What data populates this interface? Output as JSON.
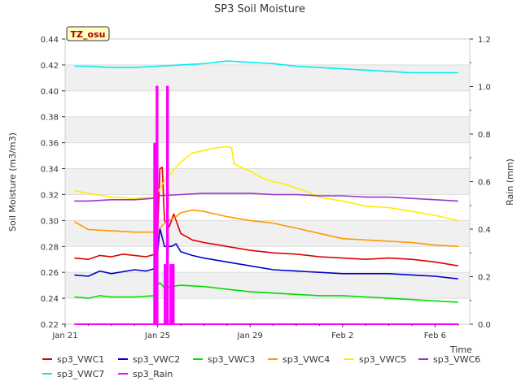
{
  "chart_data": {
    "type": "line",
    "title": "SP3 Soil Moisture",
    "xlabel": "Time",
    "ylabel": "Soil Moisture (m3/m3)",
    "y2label": "Rain (mm)",
    "station_badge": "TZ_osu",
    "x_tick_labels": [
      "Jan 21",
      "Jan 25",
      "Jan 29",
      "Feb 2",
      "Feb 6"
    ],
    "x_tick_days": [
      0,
      4,
      8,
      12,
      16
    ],
    "x_range_days": [
      0,
      17.5
    ],
    "ylim": [
      0.22,
      0.44
    ],
    "y_ticks": [
      "0.22",
      "0.24",
      "0.26",
      "0.28",
      "0.30",
      "0.32",
      "0.34",
      "0.36",
      "0.38",
      "0.40",
      "0.42",
      "0.44"
    ],
    "y2lim": [
      0.0,
      1.2
    ],
    "y2_ticks": [
      "0.0",
      "0.2",
      "0.4",
      "0.6",
      "0.8",
      "1.0",
      "1.2"
    ],
    "grid": true,
    "legend_position": "bottom",
    "series": [
      {
        "name": "sp3_VWC1",
        "color": "#dd0000",
        "axis": "left",
        "points": [
          [
            0.4,
            0.271
          ],
          [
            1,
            0.27
          ],
          [
            1.5,
            0.273
          ],
          [
            2,
            0.272
          ],
          [
            2.5,
            0.274
          ],
          [
            3,
            0.273
          ],
          [
            3.5,
            0.272
          ],
          [
            3.9,
            0.274
          ],
          [
            4.0,
            0.29
          ],
          [
            4.1,
            0.34
          ],
          [
            4.2,
            0.341
          ],
          [
            4.3,
            0.3
          ],
          [
            4.5,
            0.295
          ],
          [
            4.7,
            0.305
          ],
          [
            4.8,
            0.3
          ],
          [
            5.0,
            0.29
          ],
          [
            5.5,
            0.285
          ],
          [
            6,
            0.283
          ],
          [
            7,
            0.28
          ],
          [
            8,
            0.277
          ],
          [
            9,
            0.275
          ],
          [
            10,
            0.274
          ],
          [
            11,
            0.272
          ],
          [
            12,
            0.271
          ],
          [
            13,
            0.27
          ],
          [
            14,
            0.271
          ],
          [
            15,
            0.27
          ],
          [
            16,
            0.268
          ],
          [
            17,
            0.265
          ]
        ]
      },
      {
        "name": "sp3_VWC2",
        "color": "#0000cc",
        "axis": "left",
        "points": [
          [
            0.4,
            0.258
          ],
          [
            1,
            0.257
          ],
          [
            1.5,
            0.261
          ],
          [
            2,
            0.259
          ],
          [
            3,
            0.262
          ],
          [
            3.5,
            0.261
          ],
          [
            3.9,
            0.263
          ],
          [
            4.0,
            0.275
          ],
          [
            4.1,
            0.294
          ],
          [
            4.3,
            0.28
          ],
          [
            4.6,
            0.28
          ],
          [
            4.8,
            0.282
          ],
          [
            5.0,
            0.276
          ],
          [
            5.5,
            0.273
          ],
          [
            6,
            0.271
          ],
          [
            7,
            0.268
          ],
          [
            8,
            0.265
          ],
          [
            9,
            0.262
          ],
          [
            10,
            0.261
          ],
          [
            11,
            0.26
          ],
          [
            12,
            0.259
          ],
          [
            13,
            0.259
          ],
          [
            14,
            0.259
          ],
          [
            15,
            0.258
          ],
          [
            16,
            0.257
          ],
          [
            17,
            0.255
          ]
        ]
      },
      {
        "name": "sp3_VWC3",
        "color": "#00dd00",
        "axis": "left",
        "points": [
          [
            0.4,
            0.241
          ],
          [
            1,
            0.24
          ],
          [
            1.5,
            0.242
          ],
          [
            2,
            0.241
          ],
          [
            3,
            0.241
          ],
          [
            3.9,
            0.242
          ],
          [
            4.0,
            0.25
          ],
          [
            4.1,
            0.252
          ],
          [
            4.3,
            0.248
          ],
          [
            4.6,
            0.249
          ],
          [
            5,
            0.25
          ],
          [
            6,
            0.249
          ],
          [
            7,
            0.247
          ],
          [
            8,
            0.245
          ],
          [
            9,
            0.244
          ],
          [
            10,
            0.243
          ],
          [
            11,
            0.242
          ],
          [
            12,
            0.242
          ],
          [
            13,
            0.241
          ],
          [
            14,
            0.24
          ],
          [
            15,
            0.239
          ],
          [
            16,
            0.238
          ],
          [
            17,
            0.237
          ]
        ]
      },
      {
        "name": "sp3_VWC4",
        "color": "#ff9900",
        "axis": "left",
        "points": [
          [
            0.4,
            0.299
          ],
          [
            0.7,
            0.296
          ],
          [
            1,
            0.293
          ],
          [
            2,
            0.292
          ],
          [
            3,
            0.291
          ],
          [
            3.8,
            0.291
          ],
          [
            4.0,
            0.292
          ],
          [
            4.3,
            0.298
          ],
          [
            4.8,
            0.303
          ],
          [
            5,
            0.306
          ],
          [
            5.5,
            0.308
          ],
          [
            6,
            0.307
          ],
          [
            7,
            0.303
          ],
          [
            8,
            0.3
          ],
          [
            9,
            0.298
          ],
          [
            10,
            0.294
          ],
          [
            11,
            0.29
          ],
          [
            12,
            0.286
          ],
          [
            13,
            0.285
          ],
          [
            14,
            0.284
          ],
          [
            15,
            0.283
          ],
          [
            16,
            0.281
          ],
          [
            17,
            0.28
          ]
        ]
      },
      {
        "name": "sp3_VWC5",
        "color": "#ffee00",
        "axis": "left",
        "points": [
          [
            0.4,
            0.323
          ],
          [
            1,
            0.321
          ],
          [
            2,
            0.318
          ],
          [
            3,
            0.317
          ],
          [
            3.8,
            0.318
          ],
          [
            4.0,
            0.321
          ],
          [
            4.2,
            0.328
          ],
          [
            4.5,
            0.335
          ],
          [
            5,
            0.345
          ],
          [
            5.5,
            0.352
          ],
          [
            6,
            0.354
          ],
          [
            6.5,
            0.356
          ],
          [
            7,
            0.357
          ],
          [
            7.2,
            0.356
          ],
          [
            7.3,
            0.344
          ],
          [
            7.5,
            0.342
          ],
          [
            8,
            0.338
          ],
          [
            8.5,
            0.333
          ],
          [
            9,
            0.33
          ],
          [
            9.5,
            0.328
          ],
          [
            10,
            0.325
          ],
          [
            10.5,
            0.322
          ],
          [
            11,
            0.318
          ],
          [
            12,
            0.315
          ],
          [
            13,
            0.311
          ],
          [
            14,
            0.31
          ],
          [
            15,
            0.307
          ],
          [
            16,
            0.304
          ],
          [
            17,
            0.3
          ]
        ]
      },
      {
        "name": "sp3_VWC6",
        "color": "#9933cc",
        "axis": "left",
        "points": [
          [
            0.4,
            0.315
          ],
          [
            1,
            0.315
          ],
          [
            2,
            0.316
          ],
          [
            3,
            0.316
          ],
          [
            3.8,
            0.317
          ],
          [
            4.0,
            0.319
          ],
          [
            5,
            0.32
          ],
          [
            6,
            0.321
          ],
          [
            7,
            0.321
          ],
          [
            8,
            0.321
          ],
          [
            9,
            0.32
          ],
          [
            10,
            0.32
          ],
          [
            11,
            0.319
          ],
          [
            12,
            0.319
          ],
          [
            13,
            0.318
          ],
          [
            14,
            0.318
          ],
          [
            15,
            0.317
          ],
          [
            16,
            0.316
          ],
          [
            17,
            0.315
          ]
        ]
      },
      {
        "name": "sp3_VWC7",
        "color": "#00eeee",
        "axis": "left",
        "points": [
          [
            0.4,
            0.419
          ],
          [
            1,
            0.419
          ],
          [
            2,
            0.418
          ],
          [
            3,
            0.418
          ],
          [
            4,
            0.419
          ],
          [
            5,
            0.42
          ],
          [
            6,
            0.421
          ],
          [
            7,
            0.423
          ],
          [
            8,
            0.422
          ],
          [
            9,
            0.421
          ],
          [
            10,
            0.419
          ],
          [
            11,
            0.418
          ],
          [
            12,
            0.417
          ],
          [
            13,
            0.416
          ],
          [
            14,
            0.415
          ],
          [
            15,
            0.414
          ],
          [
            16,
            0.414
          ],
          [
            17,
            0.414
          ]
        ]
      },
      {
        "name": "sp3_Rain",
        "color": "#ff00ff",
        "axis": "right",
        "style": "spikes",
        "points": [
          [
            0.4,
            0.0
          ],
          [
            3.85,
            0.0
          ],
          [
            3.85,
            0.76
          ],
          [
            3.9,
            0.76
          ],
          [
            3.9,
            0.0
          ],
          [
            3.95,
            0.0
          ],
          [
            3.95,
            1.0
          ],
          [
            4.0,
            1.0
          ],
          [
            4.0,
            0.0
          ],
          [
            4.3,
            0.0
          ],
          [
            4.3,
            0.25
          ],
          [
            4.33,
            0.25
          ],
          [
            4.33,
            0.0
          ],
          [
            4.4,
            0.0
          ],
          [
            4.4,
            1.0
          ],
          [
            4.45,
            1.0
          ],
          [
            4.45,
            0.0
          ],
          [
            4.55,
            0.0
          ],
          [
            4.55,
            0.25
          ],
          [
            4.6,
            0.25
          ],
          [
            4.6,
            0.0
          ],
          [
            4.65,
            0.0
          ],
          [
            4.65,
            0.25
          ],
          [
            4.7,
            0.25
          ],
          [
            4.7,
            0.0
          ],
          [
            17,
            0.0
          ]
        ]
      }
    ]
  }
}
